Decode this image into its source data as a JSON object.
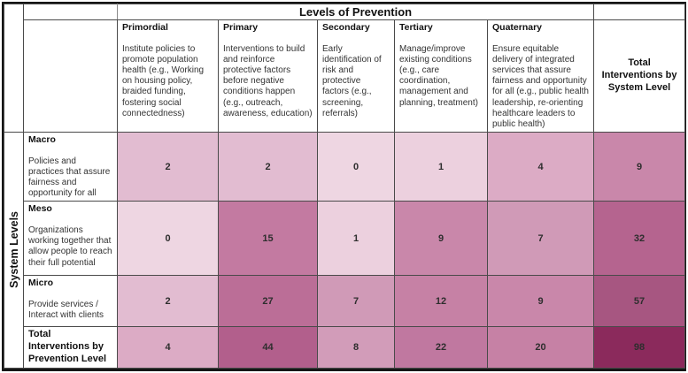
{
  "table": {
    "title": "Levels of Prevention",
    "side_label": "System Levels",
    "total_col_header": "Total Interventions by System Level",
    "prevention_levels": [
      {
        "term": "Primordial",
        "desc": "Institute policies to promote population health (e.g., Working on housing policy, braided funding, fostering social connectedness)"
      },
      {
        "term": "Primary",
        "desc": "Interventions to build and reinforce protective factors before negative conditions happen (e.g., outreach, awareness, education)"
      },
      {
        "term": "Secondary",
        "desc": "Early identification of risk and protective factors (e.g., screening, referrals)"
      },
      {
        "term": "Tertiary",
        "desc": "Manage/improve existing conditions (e.g., care coordination, management and planning, treatment)"
      },
      {
        "term": "Quaternary",
        "desc": "Ensure equitable delivery of integrated services that assure fairness and opportunity for all (e.g., public health leadership, re-orienting healthcare leaders to public health)"
      }
    ],
    "system_rows": [
      {
        "term": "Macro",
        "desc": "Policies and practices that assure fairness and opportunity for all",
        "cells": [
          {
            "v": "2",
            "bg": "#e2bcd1"
          },
          {
            "v": "2",
            "bg": "#e2bcd1"
          },
          {
            "v": "0",
            "bg": "#eed6e2"
          },
          {
            "v": "1",
            "bg": "#ecd0de"
          },
          {
            "v": "4",
            "bg": "#dcabc5"
          },
          {
            "v": "9",
            "bg": "#c987aa"
          }
        ]
      },
      {
        "term": "Meso",
        "desc": "Organizations working together that allow people to reach their full potential",
        "cells": [
          {
            "v": "0",
            "bg": "#eed6e2"
          },
          {
            "v": "15",
            "bg": "#c37aa1"
          },
          {
            "v": "1",
            "bg": "#ecd0de"
          },
          {
            "v": "9",
            "bg": "#c987aa"
          },
          {
            "v": "7",
            "bg": "#d09ab7"
          },
          {
            "v": "32",
            "bg": "#b5648f"
          }
        ]
      },
      {
        "term": "Micro",
        "desc": "Provide services / Interact with clients",
        "cells": [
          {
            "v": "2",
            "bg": "#e2bcd1"
          },
          {
            "v": "27",
            "bg": "#bb6e97"
          },
          {
            "v": "7",
            "bg": "#d09ab7"
          },
          {
            "v": "12",
            "bg": "#c681a5"
          },
          {
            "v": "9",
            "bg": "#c987aa"
          },
          {
            "v": "57",
            "bg": "#a75681"
          }
        ]
      }
    ],
    "totals_row": {
      "label": "Total Interventions by Prevention Level",
      "cells": [
        {
          "v": "4",
          "bg": "#dcabc5"
        },
        {
          "v": "44",
          "bg": "#b25f8c"
        },
        {
          "v": "8",
          "bg": "#d29cb9"
        },
        {
          "v": "22",
          "bg": "#c078a0"
        },
        {
          "v": "20",
          "bg": "#c681a5"
        },
        {
          "v": "98",
          "bg": "#8b2a5c"
        }
      ]
    }
  },
  "chart_data": {
    "type": "heatmap",
    "title": "Levels of Prevention",
    "xlabel": "Levels of Prevention",
    "ylabel": "System Levels",
    "x_categories": [
      "Primordial",
      "Primary",
      "Secondary",
      "Tertiary",
      "Quaternary",
      "Total Interventions by System Level"
    ],
    "y_categories": [
      "Macro",
      "Meso",
      "Micro",
      "Total Interventions by Prevention Level"
    ],
    "values": [
      [
        2,
        2,
        0,
        1,
        4,
        9
      ],
      [
        0,
        15,
        1,
        9,
        7,
        32
      ],
      [
        2,
        27,
        7,
        12,
        9,
        57
      ],
      [
        4,
        44,
        8,
        22,
        20,
        98
      ]
    ],
    "color_scale": {
      "min": 0,
      "max": 98,
      "min_color": "#eed6e2",
      "max_color": "#8b2a5c"
    },
    "legend_position": "none",
    "grid": true
  }
}
